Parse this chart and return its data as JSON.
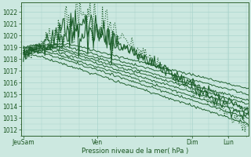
{
  "xlabel": "Pression niveau de la mer( hPa )",
  "background_color": "#cce8e0",
  "grid_color": "#aad4cc",
  "line_color": "#1a5c28",
  "ylim": [
    1011.5,
    1022.8
  ],
  "yticks": [
    1012,
    1013,
    1014,
    1015,
    1016,
    1017,
    1018,
    1019,
    1020,
    1021,
    1022
  ],
  "xtick_labels": [
    "JeuSam",
    "Ven",
    "Dim",
    "Lun"
  ],
  "xtick_positions": [
    0.0,
    0.33,
    0.75,
    0.91
  ],
  "figsize": [
    3.2,
    2.0
  ],
  "dpi": 100
}
